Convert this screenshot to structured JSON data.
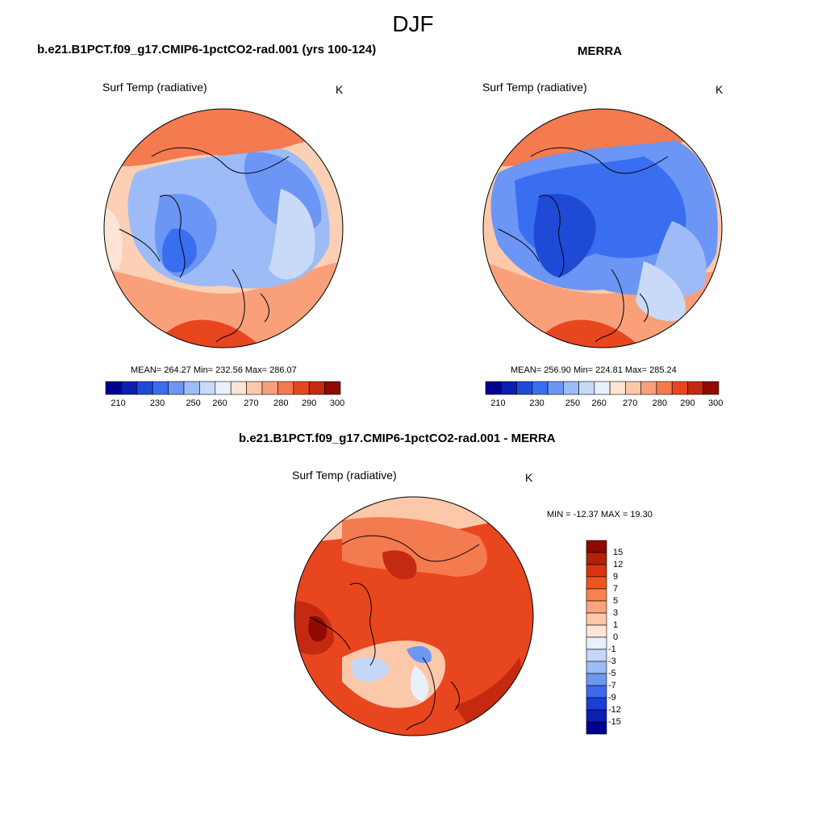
{
  "figure": {
    "title": "DJF"
  },
  "panels": [
    {
      "id": "model",
      "title": "b.e21.B1PCT.f09_g17.CMIP6-1pctCO2-rad.001 (yrs 100-124)",
      "variable": "Surf Temp (radiative)",
      "units": "K",
      "stats": "MEAN= 264.27  Min= 232.56  Max= 286.07"
    },
    {
      "id": "obs",
      "title": "MERRA",
      "variable": "Surf Temp (radiative)",
      "units": "K",
      "stats": "MEAN= 256.90  Min= 224.81  Max= 285.24"
    },
    {
      "id": "diff",
      "title": "b.e21.B1PCT.f09_g17.CMIP6-1pctCO2-rad.001 - MERRA",
      "variable": "Surf Temp (radiative)",
      "units": "K",
      "stats": "MIN = -12.37 MAX =  19.30"
    }
  ],
  "abs_colorbar": {
    "labels": [
      "210",
      "230",
      "250",
      "260",
      "270",
      "280",
      "290",
      "300"
    ],
    "colors": [
      "#00008f",
      "#0a1fb0",
      "#1f4ad6",
      "#3a6ef0",
      "#6b96f5",
      "#9dbcf7",
      "#c8daf8",
      "#e8f0fb",
      "#fde4d4",
      "#fcc8aa",
      "#f9a07a",
      "#f47a50",
      "#e8461f",
      "#c42a10",
      "#8f0a00"
    ]
  },
  "diff_colorbar": {
    "labels": [
      "15",
      "12",
      "9",
      "7",
      "5",
      "3",
      "1",
      "0",
      "-1",
      "-3",
      "-5",
      "-7",
      "-9",
      "-12",
      "-15"
    ],
    "colors": [
      "#8f0a00",
      "#b52008",
      "#d83510",
      "#f05520",
      "#f7824f",
      "#fba47a",
      "#fcc8a8",
      "#fde6d6",
      "#e8f0fb",
      "#c5d8f8",
      "#9ebcf5",
      "#6e97f2",
      "#3f68eb",
      "#1a3fd4",
      "#0a20b0",
      "#00008f"
    ]
  }
}
